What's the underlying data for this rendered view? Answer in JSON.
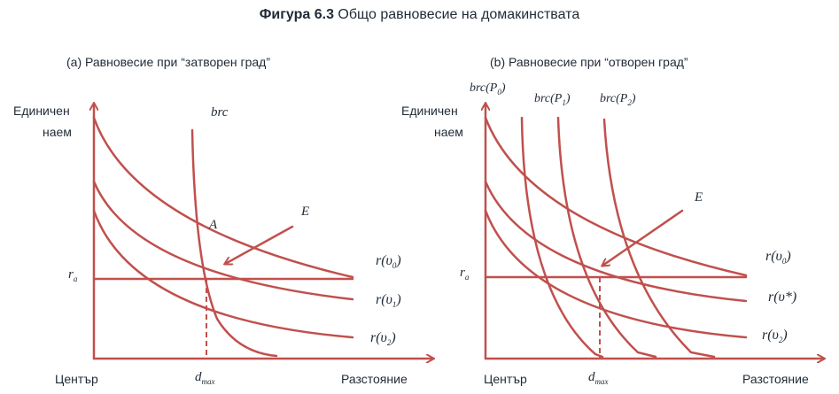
{
  "title": {
    "bold": "Фигура 6.3",
    "rest": "Общо равновесие  на домакинствата"
  },
  "panels": [
    {
      "subtitle": "(a) Равновесие при “затворен град”",
      "ylabel_line1": "Единичен",
      "ylabel_line2": "наем",
      "xlabel": "Разстояние",
      "origin": "Център",
      "ra": "r",
      "ra_sub": "a",
      "dmax": "d",
      "dmax_sub": "max",
      "brc": "brc",
      "point_A": "A",
      "point_E": "E",
      "curves": [
        {
          "text": "r(υ",
          "sub": "0",
          "close": ")"
        },
        {
          "text": "r(υ",
          "sub": "1",
          "close": ")"
        },
        {
          "text": "r(υ",
          "sub": "2",
          "close": ")"
        }
      ]
    },
    {
      "subtitle": "(b) Равновесие при “отворен град”",
      "ylabel_line1": "Единичен",
      "ylabel_line2": "наем",
      "xlabel": "Разстояние",
      "origin": "Център",
      "ra": "r",
      "ra_sub": "a",
      "dmax": "d",
      "dmax_sub": "max",
      "brc": [
        {
          "text": "brc(P",
          "sub": "0",
          "close": ")"
        },
        {
          "text": "brc(P",
          "sub": "1",
          "close": ")"
        },
        {
          "text": "brc(P",
          "sub": "2",
          "close": ")"
        }
      ],
      "point_E": "E",
      "curves": [
        {
          "text": "r(υ",
          "sub": "0",
          "close": ")"
        },
        {
          "text": "r(υ*",
          "sub": "",
          "close": ")"
        },
        {
          "text": "r(υ",
          "sub": "2",
          "close": ")"
        }
      ]
    }
  ],
  "colors": {
    "line": "#c0504d",
    "text": "#1f2a36"
  }
}
